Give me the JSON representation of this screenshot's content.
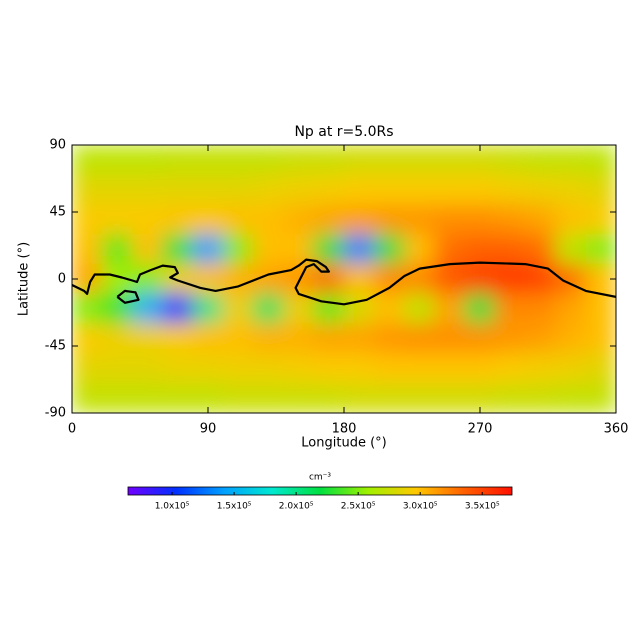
{
  "chart_data": {
    "type": "heatmap",
    "title": "Np at r=5.0Rs",
    "xlabel": "Longitude (°)",
    "ylabel": "Latitude (°)",
    "xlim": [
      0,
      360
    ],
    "xticks": [
      0,
      90,
      180,
      270,
      360
    ],
    "ylim": [
      -90,
      90
    ],
    "yticks": [
      -90,
      -45,
      0,
      45,
      90
    ],
    "z": [
      [
        270000,
        270000,
        270000,
        272000,
        272000,
        272000,
        272000,
        275000,
        275000,
        278000,
        278000,
        278000,
        278000,
        278000,
        275000,
        272000,
        272000,
        270000
      ],
      [
        285000,
        285000,
        285000,
        285000,
        285000,
        285000,
        288000,
        290000,
        292000,
        295000,
        295000,
        295000,
        295000,
        295000,
        292000,
        290000,
        288000,
        285000
      ],
      [
        295000,
        295000,
        295000,
        298000,
        298000,
        300000,
        300000,
        305000,
        310000,
        312000,
        315000,
        315000,
        318000,
        318000,
        315000,
        310000,
        300000,
        295000
      ],
      [
        300000,
        240000,
        300000,
        220000,
        140000,
        250000,
        300000,
        300000,
        220000,
        130000,
        220000,
        300000,
        330000,
        335000,
        335000,
        330000,
        270000,
        250000
      ],
      [
        310000,
        260000,
        250000,
        290000,
        300000,
        305000,
        310000,
        315000,
        330000,
        300000,
        320000,
        320000,
        340000,
        350000,
        355000,
        350000,
        330000,
        300000
      ],
      [
        250000,
        230000,
        150000,
        100000,
        200000,
        290000,
        210000,
        290000,
        240000,
        280000,
        300000,
        270000,
        310000,
        220000,
        320000,
        320000,
        310000,
        300000
      ],
      [
        295000,
        290000,
        290000,
        295000,
        300000,
        300000,
        305000,
        305000,
        310000,
        310000,
        315000,
        318000,
        318000,
        318000,
        315000,
        312000,
        305000,
        300000
      ],
      [
        285000,
        285000,
        285000,
        288000,
        288000,
        290000,
        290000,
        292000,
        295000,
        295000,
        298000,
        298000,
        298000,
        298000,
        295000,
        292000,
        290000,
        285000
      ],
      [
        272000,
        272000,
        272000,
        272000,
        272000,
        275000,
        275000,
        275000,
        275000,
        278000,
        278000,
        278000,
        278000,
        278000,
        275000,
        275000,
        272000,
        272000
      ]
    ],
    "colormap": [
      "#7000ff",
      "#0030ff",
      "#00a0ff",
      "#00e8d0",
      "#00e040",
      "#a0f000",
      "#ffc800",
      "#ff6000",
      "#ff1000"
    ],
    "clim": [
      64500,
      374000
    ],
    "colorbar_label": "cm⁻³",
    "colorbar_ticks": [
      {
        "value": 100000,
        "label": "1.0x10⁵"
      },
      {
        "value": 150000,
        "label": "1.5x10⁵"
      },
      {
        "value": 200000,
        "label": "2.0x10⁵"
      },
      {
        "value": 250000,
        "label": "2.5x10⁵"
      },
      {
        "value": 300000,
        "label": "3.0x10⁵"
      },
      {
        "value": 350000,
        "label": "3.5x10⁵"
      }
    ],
    "contour": {
      "color": "#000000",
      "x": [
        0,
        8,
        10,
        12,
        15,
        25,
        33,
        40,
        43,
        45,
        52,
        60,
        68,
        70,
        65,
        70,
        85,
        95,
        110,
        130,
        145,
        150,
        155,
        162,
        168,
        170,
        165,
        160,
        155,
        148,
        150,
        165,
        180,
        195,
        210,
        220,
        230,
        250,
        270,
        300,
        315,
        325,
        340,
        360,
        null,
        30,
        35,
        42,
        44,
        35,
        30
      ],
      "y": [
        -4,
        -8,
        -10,
        -2,
        3,
        3,
        1,
        -1,
        -2,
        3,
        6,
        9,
        8,
        4,
        1,
        -1,
        -6,
        -8,
        -5,
        3,
        6,
        9,
        13,
        12,
        8,
        5,
        5,
        10,
        8,
        -6,
        -10,
        -15,
        -17,
        -14,
        -6,
        2,
        7,
        10,
        11,
        10,
        7,
        -1,
        -8,
        -12,
        null,
        -12,
        -8,
        -9,
        -14,
        -16,
        -12
      ]
    }
  }
}
